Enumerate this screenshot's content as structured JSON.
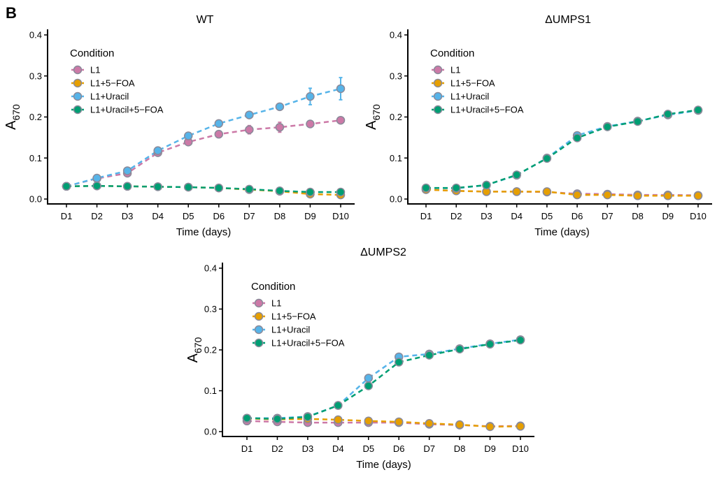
{
  "figure": {
    "panel_letter": "B",
    "colors": {
      "L1": "#CC79A7",
      "L1+5-FOA": "#E69F00",
      "L1+Uracil": "#56B4E9",
      "L1+Uracil+5-FOA": "#009E73",
      "marker_outline": "#8a8a9a",
      "error_bar_wt_uracil": "#56B4E9",
      "error_bar_wt_l1": "#CC79A7"
    }
  },
  "chart_data": [
    {
      "type": "line",
      "title": "WT",
      "xlabel": "Time (days)",
      "ylabel_main": "A",
      "ylabel_sub": "670",
      "categories": [
        "D1",
        "D2",
        "D3",
        "D4",
        "D5",
        "D6",
        "D7",
        "D8",
        "D9",
        "D10"
      ],
      "ylim": [
        0,
        0.4
      ],
      "yticks": [
        "0.0",
        "0.1",
        "0.2",
        "0.3",
        "0.4"
      ],
      "legend_title": "Condition",
      "legend_labels": [
        "L1",
        "L1+5−FOA",
        "L1+Uracil",
        "L1+Uracil+5−FOA"
      ],
      "legend_position": "top-left",
      "grid": false,
      "series": [
        {
          "name": "L1",
          "values": [
            0.031,
            0.05,
            0.063,
            0.113,
            0.139,
            0.158,
            0.169,
            0.175,
            0.183,
            0.192
          ],
          "error": [
            0,
            0,
            0,
            0,
            0,
            0,
            0.01,
            0.012,
            0.008,
            0.008
          ]
        },
        {
          "name": "L1+5-FOA",
          "values": [
            0.031,
            0.032,
            0.031,
            0.03,
            0.029,
            0.027,
            0.023,
            0.019,
            0.012,
            0.01
          ],
          "error": [
            0,
            0,
            0,
            0,
            0,
            0,
            0,
            0,
            0,
            0
          ]
        },
        {
          "name": "L1+Uracil",
          "values": [
            0.031,
            0.051,
            0.069,
            0.118,
            0.154,
            0.184,
            0.205,
            0.225,
            0.25,
            0.269
          ],
          "error": [
            0,
            0,
            0,
            0,
            0,
            0,
            0,
            0,
            0.02,
            0.027
          ]
        },
        {
          "name": "L1+Uracil+5-FOA",
          "values": [
            0.031,
            0.032,
            0.031,
            0.03,
            0.029,
            0.027,
            0.024,
            0.02,
            0.017,
            0.017
          ],
          "error": [
            0,
            0,
            0,
            0,
            0,
            0,
            0,
            0,
            0,
            0
          ]
        }
      ]
    },
    {
      "type": "line",
      "title": "ΔUMPS1",
      "xlabel": "Time (days)",
      "ylabel_main": "A",
      "ylabel_sub": "670",
      "categories": [
        "D1",
        "D2",
        "D3",
        "D4",
        "D5",
        "D6",
        "D7",
        "D8",
        "D9",
        "D10"
      ],
      "ylim": [
        0,
        0.4
      ],
      "yticks": [
        "0.0",
        "0.1",
        "0.2",
        "0.3",
        "0.4"
      ],
      "legend_title": "Condition",
      "legend_labels": [
        "L1",
        "L1+5−FOA",
        "L1+Uracil",
        "L1+Uracil+5−FOA"
      ],
      "legend_position": "top-left",
      "grid": false,
      "series": [
        {
          "name": "L1",
          "values": [
            0.023,
            0.02,
            0.018,
            0.018,
            0.017,
            0.013,
            0.012,
            0.01,
            0.01,
            0.009
          ],
          "error": [
            0,
            0,
            0,
            0,
            0,
            0,
            0,
            0,
            0,
            0
          ]
        },
        {
          "name": "L1+5-FOA",
          "values": [
            0.023,
            0.02,
            0.018,
            0.018,
            0.018,
            0.01,
            0.01,
            0.008,
            0.008,
            0.008
          ],
          "error": [
            0,
            0,
            0,
            0,
            0,
            0,
            0,
            0,
            0,
            0
          ]
        },
        {
          "name": "L1+Uracil",
          "values": [
            0.027,
            0.026,
            0.034,
            0.058,
            0.1,
            0.155,
            0.177,
            0.19,
            0.205,
            0.216
          ],
          "error": [
            0,
            0,
            0,
            0,
            0,
            0,
            0,
            0,
            0,
            0
          ]
        },
        {
          "name": "L1+Uracil+5-FOA",
          "values": [
            0.027,
            0.027,
            0.034,
            0.059,
            0.099,
            0.149,
            0.176,
            0.189,
            0.207,
            0.217
          ],
          "error": [
            0,
            0,
            0,
            0,
            0,
            0,
            0,
            0,
            0,
            0
          ]
        }
      ]
    },
    {
      "type": "line",
      "title": "ΔUMPS2",
      "xlabel": "Time (days)",
      "ylabel_main": "A",
      "ylabel_sub": "670",
      "categories": [
        "D1",
        "D2",
        "D3",
        "D4",
        "D5",
        "D6",
        "D7",
        "D8",
        "D9",
        "D10"
      ],
      "ylim": [
        0,
        0.4
      ],
      "yticks": [
        "0.0",
        "0.1",
        "0.2",
        "0.3",
        "0.4"
      ],
      "legend_title": "Condition",
      "legend_labels": [
        "L1",
        "L1+5−FOA",
        "L1+Uracil",
        "L1+Uracil+5−FOA"
      ],
      "legend_position": "top-left",
      "grid": false,
      "series": [
        {
          "name": "L1",
          "values": [
            0.026,
            0.024,
            0.022,
            0.022,
            0.022,
            0.022,
            0.018,
            0.016,
            0.013,
            0.014
          ],
          "error": [
            0,
            0,
            0,
            0,
            0,
            0,
            0,
            0,
            0,
            0
          ]
        },
        {
          "name": "L1+5-FOA",
          "values": [
            0.032,
            0.03,
            0.031,
            0.029,
            0.026,
            0.024,
            0.02,
            0.017,
            0.012,
            0.013
          ],
          "error": [
            0,
            0,
            0,
            0,
            0,
            0,
            0,
            0,
            0,
            0
          ]
        },
        {
          "name": "L1+Uracil",
          "values": [
            0.033,
            0.033,
            0.037,
            0.064,
            0.131,
            0.183,
            0.19,
            0.203,
            0.215,
            0.225
          ],
          "error": [
            0,
            0,
            0,
            0,
            0,
            0,
            0,
            0,
            0,
            0
          ]
        },
        {
          "name": "L1+Uracil+5-FOA",
          "values": [
            0.033,
            0.031,
            0.036,
            0.064,
            0.112,
            0.17,
            0.187,
            0.202,
            0.214,
            0.224
          ],
          "error": [
            0,
            0,
            0,
            0,
            0,
            0,
            0,
            0,
            0,
            0
          ]
        }
      ]
    }
  ]
}
